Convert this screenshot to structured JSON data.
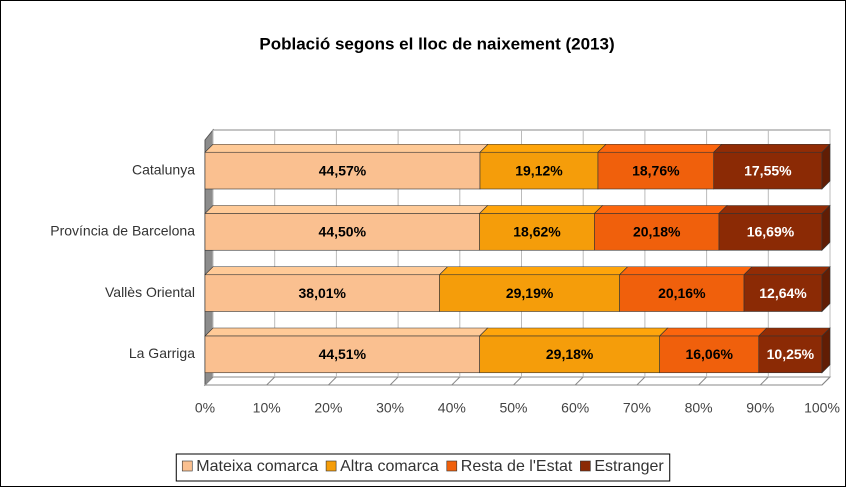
{
  "chart_data": {
    "type": "stacked_bar_horizontal_100",
    "title": "Població segons el lloc de naixement (2013)",
    "categories": [
      "Catalunya",
      "Província de Barcelona",
      "Vallès Oriental",
      "La Garriga"
    ],
    "series": [
      {
        "name": "Mateixa comarca",
        "color": "#fac090",
        "label_color": "#000000",
        "values": [
          44.57,
          44.5,
          38.01,
          44.51
        ],
        "value_labels": [
          "44,57%",
          "44,50%",
          "38,01%",
          "44,51%"
        ]
      },
      {
        "name": "Altra comarca",
        "color": "#f59d0a",
        "label_color": "#000000",
        "values": [
          19.12,
          18.62,
          29.19,
          29.18
        ],
        "value_labels": [
          "19,12%",
          "18,62%",
          "29,19%",
          "29,18%"
        ]
      },
      {
        "name": "Resta de l'Estat",
        "color": "#f0600c",
        "label_color": "#000000",
        "values": [
          18.76,
          20.18,
          20.16,
          16.06
        ],
        "value_labels": [
          "18,76%",
          "20,18%",
          "20,16%",
          "16,06%"
        ]
      },
      {
        "name": "Estranger",
        "color": "#8b2a05",
        "label_color": "#ffffff",
        "values": [
          17.55,
          16.69,
          12.64,
          10.25
        ],
        "value_labels": [
          "17,55%",
          "16,69%",
          "12,64%",
          "10,25%"
        ]
      }
    ],
    "xlim": [
      0,
      100
    ],
    "xticks": [
      {
        "value": 0,
        "label": "0%"
      },
      {
        "value": 10,
        "label": "10%"
      },
      {
        "value": 20,
        "label": "20%"
      },
      {
        "value": 30,
        "label": "30%"
      },
      {
        "value": 40,
        "label": "40%"
      },
      {
        "value": 50,
        "label": "50%"
      },
      {
        "value": 60,
        "label": "60%"
      },
      {
        "value": 70,
        "label": "70%"
      },
      {
        "value": 80,
        "label": "80%"
      },
      {
        "value": 90,
        "label": "90%"
      },
      {
        "value": 100,
        "label": "100%"
      }
    ],
    "grid": true,
    "legend": "bottom"
  }
}
